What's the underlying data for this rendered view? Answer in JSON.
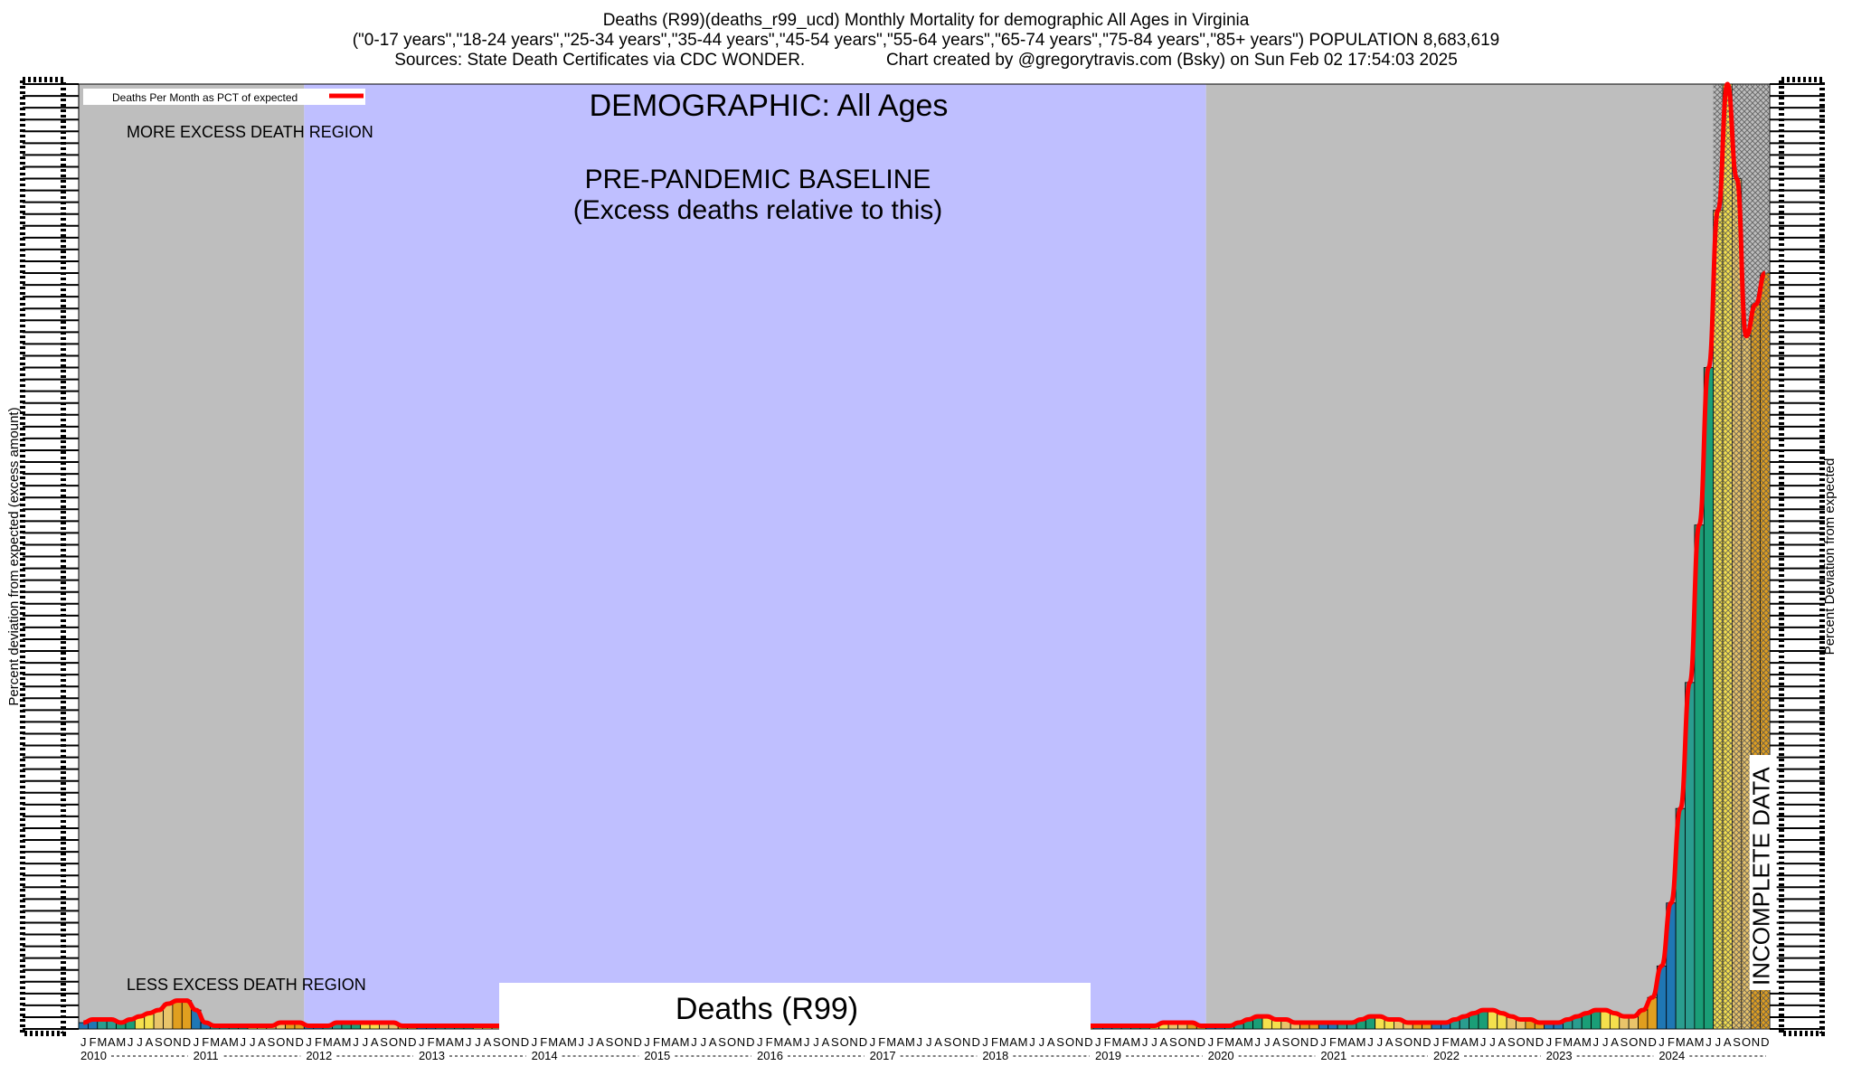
{
  "header": {
    "line1": "Deaths (R99)(deaths_r99_ucd) Monthly Mortality for demographic All Ages in Virginia",
    "line2": "(\"0-17 years\",\"18-24 years\",\"25-34 years\",\"35-44 years\",\"45-54 years\",\"55-64 years\",\"65-74 years\",\"75-84 years\",\"85+ years\") POPULATION 8,683,619",
    "line3": "Sources: State Death Certificates via CDC WONDER.                 Chart created by @gregorytravis.com (Bsky) on Sun Feb 02 17:54:03 2025"
  },
  "chart_data": {
    "type": "bar",
    "legend": {
      "label": "Deaths Per Month as PCT of expected",
      "placement": "top-left"
    },
    "annotations": {
      "demographic": "DEMOGRAPHIC: All Ages",
      "baseline_line1": "PRE-PANDEMIC BASELINE",
      "baseline_line2": "(Excess deaths relative to this)",
      "more_region": "MORE EXCESS DEATH REGION",
      "less_region": "LESS EXCESS DEATH REGION",
      "incomplete": "INCOMPLETE DATA",
      "bottom_label": "Deaths (R99)"
    },
    "ylabel_left": "Percent deviation from expected (excess amount)",
    "ylabel_right": "Percent Deviation from expected",
    "month_letters": [
      "J",
      "F",
      "M",
      "A",
      "M",
      "J",
      "J",
      "A",
      "S",
      "O",
      "N",
      "D"
    ],
    "years": [
      "2010",
      "2011",
      "2012",
      "2013",
      "2014",
      "2015",
      "2016",
      "2017",
      "2018",
      "2019",
      "2020",
      "2021",
      "2022",
      "2023",
      "2024"
    ],
    "baseline_years": [
      "2012",
      "2019"
    ],
    "incomplete_from": "2024-07",
    "values": [
      2,
      3,
      3,
      3,
      2,
      3,
      4,
      5,
      6,
      8,
      9,
      9,
      6,
      2,
      1,
      1,
      1,
      1,
      1,
      1,
      1,
      2,
      2,
      2,
      1,
      1,
      1,
      2,
      2,
      2,
      2,
      2,
      2,
      2,
      1,
      1,
      1,
      1,
      1,
      1,
      1,
      1,
      1,
      1,
      1,
      1,
      1,
      1,
      1,
      1,
      1,
      1,
      1,
      1,
      1,
      1,
      1,
      1,
      1,
      1,
      1,
      1,
      1,
      1,
      1,
      1,
      1,
      1,
      1,
      1,
      1,
      1,
      1,
      1,
      1,
      1,
      1,
      1,
      1,
      1,
      1,
      1,
      1,
      1,
      1,
      1,
      1,
      1,
      1,
      1,
      1,
      1,
      1,
      1,
      1,
      1,
      1,
      1,
      1,
      1,
      1,
      1,
      1,
      1,
      1,
      1,
      1,
      1,
      1,
      1,
      1,
      1,
      1,
      1,
      1,
      2,
      2,
      2,
      2,
      1,
      1,
      1,
      1,
      2,
      3,
      4,
      4,
      3,
      3,
      2,
      2,
      2,
      2,
      2,
      2,
      2,
      3,
      4,
      4,
      3,
      3,
      2,
      2,
      2,
      2,
      2,
      3,
      4,
      5,
      6,
      6,
      5,
      4,
      3,
      3,
      2,
      2,
      2,
      3,
      4,
      5,
      6,
      6,
      5,
      4,
      4,
      6,
      10,
      20,
      40,
      70,
      110,
      160,
      210,
      260,
      300,
      270,
      220,
      230,
      240
    ],
    "fill_colors": [
      "#1f77b4",
      "#2a9d8f",
      "#1a9e77",
      "#f4e04d",
      "#e9c46a",
      "#e09f1f"
    ],
    "line_color": "#ff0000"
  }
}
